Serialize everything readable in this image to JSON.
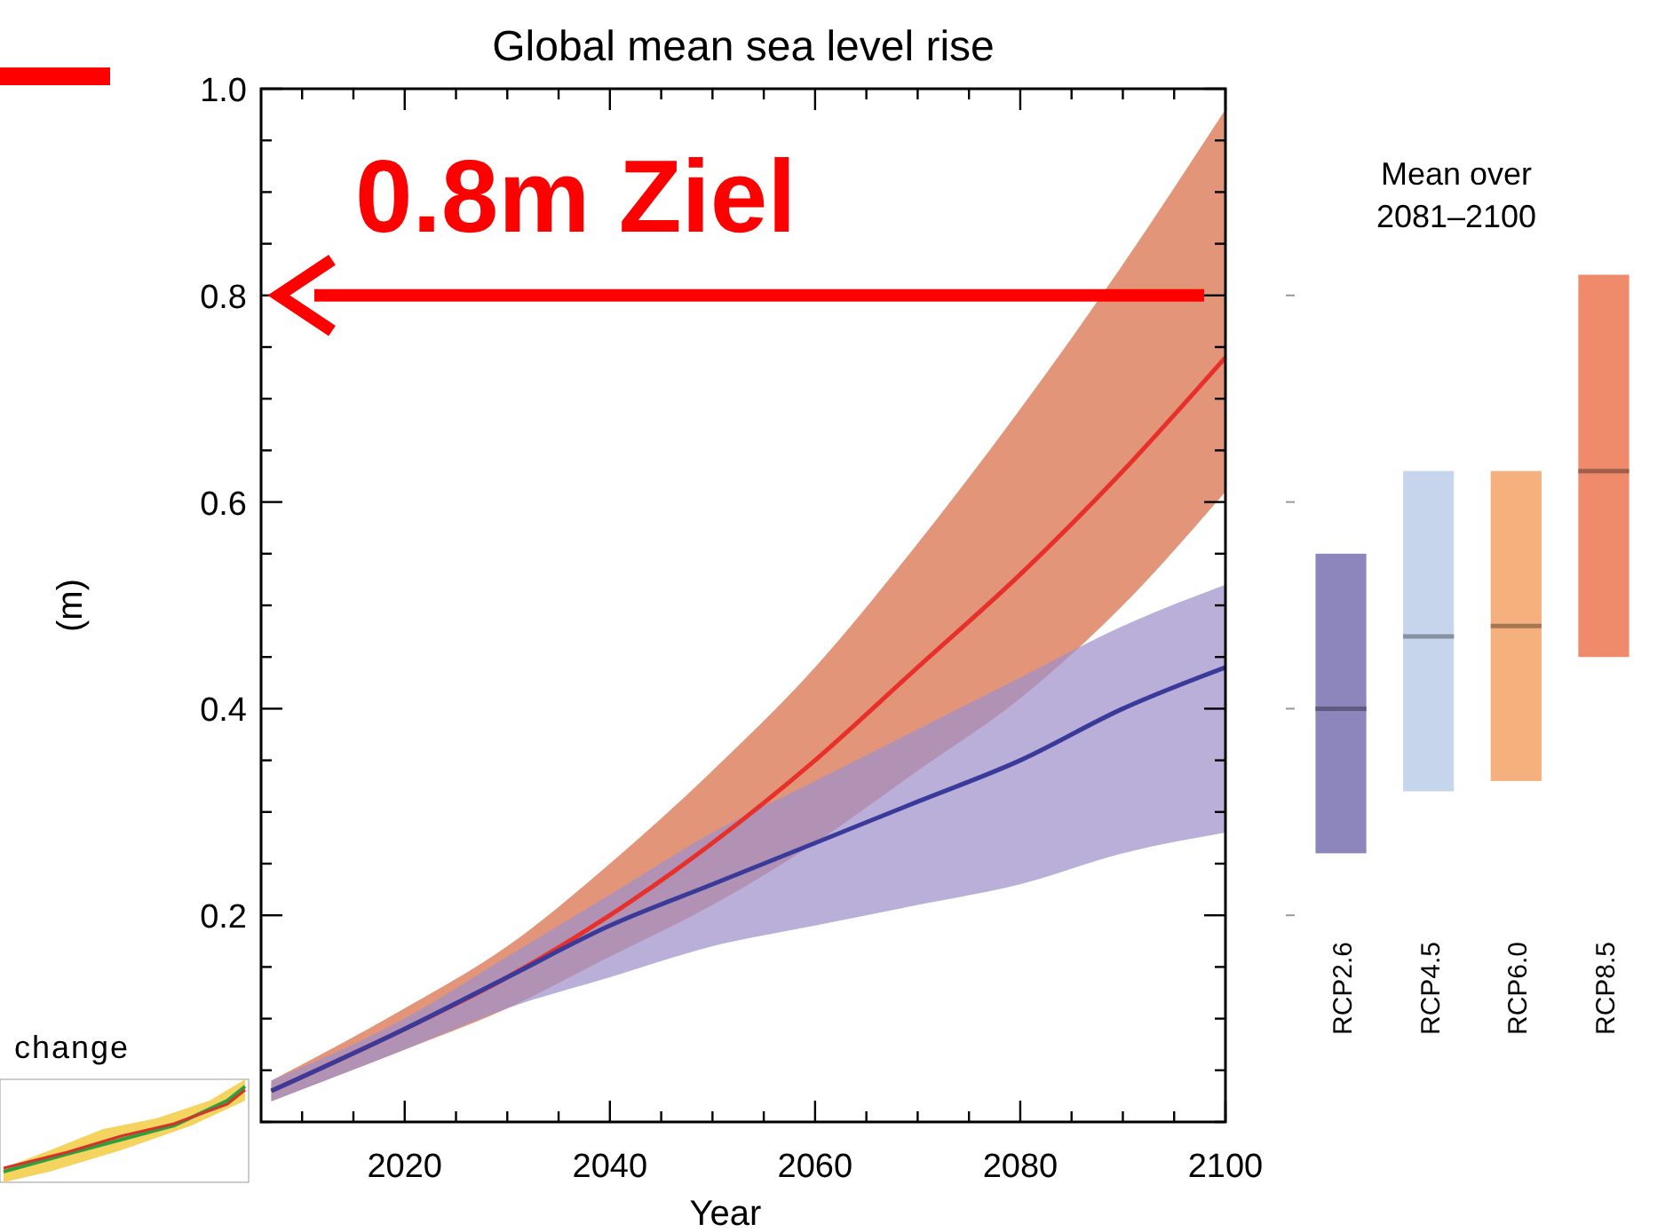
{
  "chart_data": [
    {
      "type": "line",
      "title": "Global mean sea level rise",
      "xlabel": "Year",
      "ylabel": "(m)",
      "xlim": [
        2006,
        2100
      ],
      "ylim": [
        0,
        1.0
      ],
      "xticks": [
        {
          "value": 2010,
          "label": null
        },
        {
          "value": 2015,
          "label": null
        },
        2020,
        {
          "value": 2025,
          "label": null
        },
        {
          "value": 2030,
          "label": null
        },
        {
          "value": 2035,
          "label": null
        },
        2040,
        {
          "value": 2045,
          "label": null
        },
        {
          "value": 2050,
          "label": null
        },
        {
          "value": 2055,
          "label": null
        },
        2060,
        {
          "value": 2065,
          "label": null
        },
        {
          "value": 2070,
          "label": null
        },
        {
          "value": 2075,
          "label": null
        },
        2080,
        {
          "value": 2085,
          "label": null
        },
        {
          "value": 2090,
          "label": null
        },
        {
          "value": 2095,
          "label": null
        },
        2100
      ],
      "yticks": [
        {
          "value": 0,
          "label": null
        },
        {
          "value": 0.05,
          "label": null
        },
        {
          "value": 0.1,
          "label": null
        },
        {
          "value": 0.15,
          "label": null
        },
        {
          "value": 0.2,
          "label": "0.2"
        },
        {
          "value": 0.25,
          "label": null
        },
        {
          "value": 0.3,
          "label": null
        },
        {
          "value": 0.35,
          "label": null
        },
        {
          "value": 0.4,
          "label": "0.4"
        },
        {
          "value": 0.45,
          "label": null
        },
        {
          "value": 0.5,
          "label": null
        },
        {
          "value": 0.55,
          "label": null
        },
        {
          "value": 0.6,
          "label": "0.6"
        },
        {
          "value": 0.65,
          "label": null
        },
        {
          "value": 0.7,
          "label": null
        },
        {
          "value": 0.75,
          "label": null
        },
        {
          "value": 0.8,
          "label": "0.8"
        },
        {
          "value": 0.85,
          "label": null
        },
        {
          "value": 0.9,
          "label": null
        },
        {
          "value": 0.95,
          "label": null
        },
        {
          "value": 1.0,
          "label": "1.0"
        }
      ],
      "x": [
        2007,
        2020,
        2030,
        2040,
        2050,
        2060,
        2070,
        2080,
        2090,
        2100
      ],
      "series": [
        {
          "color": "#e8302a",
          "values": [
            0.03,
            0.09,
            0.14,
            0.2,
            0.27,
            0.35,
            0.44,
            0.53,
            0.63,
            0.74
          ],
          "lower": [
            0.02,
            0.07,
            0.11,
            0.16,
            0.21,
            0.27,
            0.34,
            0.41,
            0.5,
            0.61
          ],
          "upper": [
            0.04,
            0.11,
            0.17,
            0.25,
            0.34,
            0.44,
            0.56,
            0.69,
            0.83,
            0.98
          ]
        },
        {
          "color": "#3a3a9a",
          "values": [
            0.03,
            0.09,
            0.14,
            0.19,
            0.23,
            0.27,
            0.31,
            0.35,
            0.4,
            0.44
          ],
          "lower": [
            0.02,
            0.07,
            0.11,
            0.14,
            0.17,
            0.19,
            0.21,
            0.23,
            0.26,
            0.28
          ],
          "upper": [
            0.04,
            0.1,
            0.16,
            0.22,
            0.28,
            0.33,
            0.38,
            0.43,
            0.48,
            0.52
          ]
        }
      ],
      "marker": "none",
      "line_style": "solid",
      "grid": false,
      "legend": false,
      "ref_lines": [
        {
          "axis": "y",
          "value": 0.8,
          "label": "0.8m Ziel",
          "color": "#ff0000"
        }
      ],
      "annotations": [
        "change"
      ]
    },
    {
      "type": "box",
      "title": "Mean over 2081–2100",
      "categories": [
        "RCP2.6",
        "RCP4.5",
        "RCP6.0",
        "RCP8.5"
      ],
      "yticks": [
        0.2,
        0.4,
        0.6,
        0.8
      ],
      "tick_labels": "x",
      "colors": [
        "#8d86bd",
        "#c7d5ec",
        "#f6b07e",
        "#ef8b6b"
      ],
      "boxes": [
        {
          "low": 0.26,
          "q1": 0.26,
          "median": 0.4,
          "q3": 0.55,
          "high": 0.55
        },
        {
          "low": 0.32,
          "q1": 0.32,
          "median": 0.47,
          "q3": 0.63,
          "high": 0.63
        },
        {
          "low": 0.33,
          "q1": 0.33,
          "median": 0.48,
          "q3": 0.63,
          "high": 0.63
        },
        {
          "low": 0.45,
          "q1": 0.45,
          "median": 0.63,
          "q3": 0.82,
          "high": 0.82
        }
      ]
    }
  ]
}
